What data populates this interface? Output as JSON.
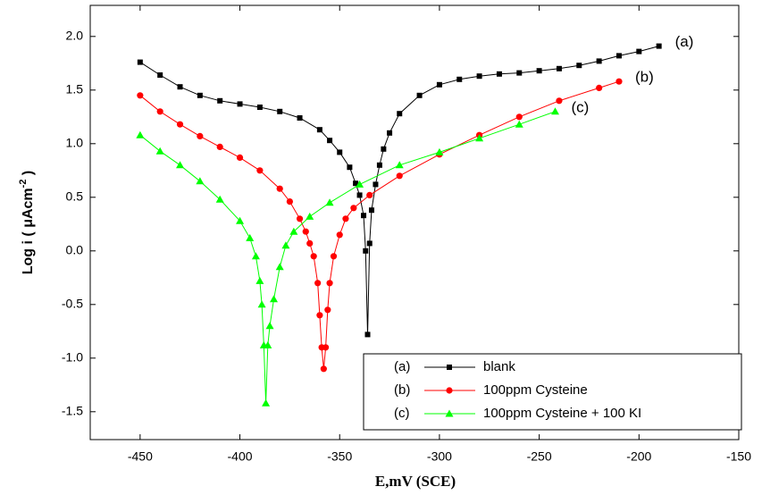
{
  "chart_data": {
    "type": "scatter-line",
    "xlabel": "E,mV (SCE)",
    "ylabel": "Log i ( μAcm",
    "ylabel_sup": "-2",
    "ylabel_end": " )",
    "xlim": [
      -475,
      -150
    ],
    "xticks": [
      -450,
      -400,
      -350,
      -300,
      -250,
      -200,
      -150
    ],
    "ylim": [
      -1.76,
      2.29
    ],
    "yticks": [
      {
        "value": 2,
        "label": "2.0"
      },
      1.5,
      {
        "value": 1,
        "label": "1.0"
      },
      0.5,
      {
        "value": 0,
        "label": "0.0"
      },
      -0.5,
      {
        "value": -1,
        "label": "-1.0"
      },
      -1.5
    ],
    "legend": "lower right",
    "series": [
      {
        "name": "blank",
        "label": "(a)",
        "color": "#000000",
        "marker": "square",
        "x": [
          -450,
          -440,
          -430,
          -420,
          -410,
          -400,
          -390,
          -380,
          -370,
          -360,
          -355,
          -350,
          -345,
          -342,
          -340,
          -338,
          -337,
          -336,
          -335,
          -334,
          -332,
          -330,
          -328,
          -325,
          -320,
          -310,
          -300,
          -290,
          -280,
          -270,
          -260,
          -250,
          -240,
          -230,
          -220,
          -210,
          -200,
          -190
        ],
        "values": [
          1.76,
          1.64,
          1.53,
          1.45,
          1.4,
          1.37,
          1.34,
          1.3,
          1.24,
          1.13,
          1.03,
          0.92,
          0.78,
          0.63,
          0.52,
          0.33,
          0.0,
          -0.78,
          0.07,
          0.38,
          0.62,
          0.8,
          0.95,
          1.1,
          1.28,
          1.45,
          1.55,
          1.6,
          1.63,
          1.65,
          1.66,
          1.68,
          1.7,
          1.73,
          1.77,
          1.82,
          1.86,
          1.91
        ]
      },
      {
        "name": "100ppm Cysteine",
        "label": "(b)",
        "color": "#ff0000",
        "marker": "circle",
        "x": [
          -450,
          -440,
          -430,
          -420,
          -410,
          -400,
          -390,
          -380,
          -375,
          -370,
          -367,
          -365,
          -363,
          -361,
          -360,
          -359,
          -358,
          -357,
          -356,
          -355,
          -353,
          -350,
          -347,
          -343,
          -335,
          -320,
          -300,
          -280,
          -260,
          -240,
          -220,
          -210
        ],
        "values": [
          1.45,
          1.3,
          1.18,
          1.07,
          0.97,
          0.87,
          0.75,
          0.58,
          0.46,
          0.3,
          0.18,
          0.07,
          -0.05,
          -0.3,
          -0.6,
          -0.9,
          -1.1,
          -0.9,
          -0.55,
          -0.3,
          -0.05,
          0.15,
          0.3,
          0.4,
          0.52,
          0.7,
          0.9,
          1.08,
          1.25,
          1.4,
          1.52,
          1.58
        ]
      },
      {
        "name": "100ppm Cysteine + 100 KI",
        "label": "(c)",
        "color": "#00ff00",
        "marker": "triangle",
        "x": [
          -450,
          -440,
          -430,
          -420,
          -410,
          -400,
          -395,
          -392,
          -390,
          -389,
          -388,
          -387,
          -386,
          -385,
          -383,
          -380,
          -377,
          -373,
          -365,
          -355,
          -340,
          -320,
          -300,
          -280,
          -260,
          -242
        ],
        "values": [
          1.08,
          0.93,
          0.8,
          0.65,
          0.48,
          0.28,
          0.12,
          -0.05,
          -0.28,
          -0.5,
          -0.88,
          -1.42,
          -0.88,
          -0.7,
          -0.45,
          -0.15,
          0.05,
          0.18,
          0.32,
          0.45,
          0.62,
          0.8,
          0.92,
          1.05,
          1.18,
          1.3
        ]
      }
    ]
  }
}
